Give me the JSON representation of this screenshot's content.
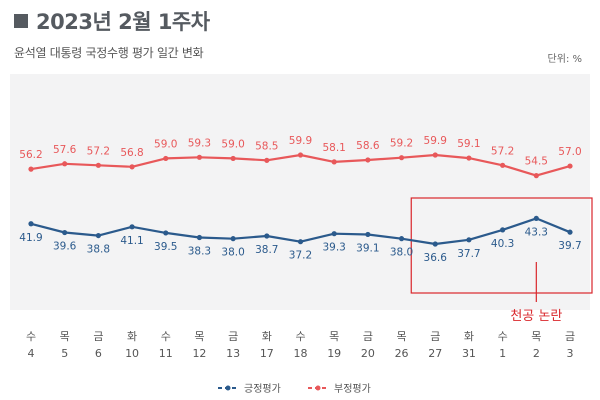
{
  "header": {
    "title": "2023년 2월 1주차",
    "subtitle": "윤석열 대통령 국정수행 평가 일간 변화",
    "unit": "단위: %"
  },
  "chart_data": {
    "type": "line",
    "categories": [
      {
        "day": "수",
        "date": "4"
      },
      {
        "day": "목",
        "date": "5"
      },
      {
        "day": "금",
        "date": "6"
      },
      {
        "day": "화",
        "date": "10"
      },
      {
        "day": "수",
        "date": "11"
      },
      {
        "day": "목",
        "date": "12"
      },
      {
        "day": "금",
        "date": "13"
      },
      {
        "day": "화",
        "date": "17"
      },
      {
        "day": "수",
        "date": "18"
      },
      {
        "day": "목",
        "date": "19"
      },
      {
        "day": "금",
        "date": "20"
      },
      {
        "day": "목",
        "date": "26"
      },
      {
        "day": "금",
        "date": "27"
      },
      {
        "day": "화",
        "date": "31"
      },
      {
        "day": "수",
        "date": "1"
      },
      {
        "day": "목",
        "date": "2"
      },
      {
        "day": "금",
        "date": "3"
      }
    ],
    "series": [
      {
        "name": "긍정평가",
        "color": "#2b5a8c",
        "values": [
          41.9,
          39.6,
          38.8,
          41.1,
          39.5,
          38.3,
          38.0,
          38.7,
          37.2,
          39.3,
          39.1,
          38.0,
          36.6,
          37.7,
          40.3,
          43.3,
          39.7
        ]
      },
      {
        "name": "부정평가",
        "color": "#e8585a",
        "values": [
          56.2,
          57.6,
          57.2,
          56.8,
          59.0,
          59.3,
          59.0,
          58.5,
          59.9,
          58.1,
          58.6,
          59.2,
          59.9,
          59.1,
          57.2,
          54.5,
          57.0
        ]
      }
    ],
    "annotation": {
      "text": "천공 논란",
      "color": "#d9262b",
      "from_index": 12,
      "to_index": 16
    },
    "legend_position": "bottom-center",
    "grid": false
  }
}
